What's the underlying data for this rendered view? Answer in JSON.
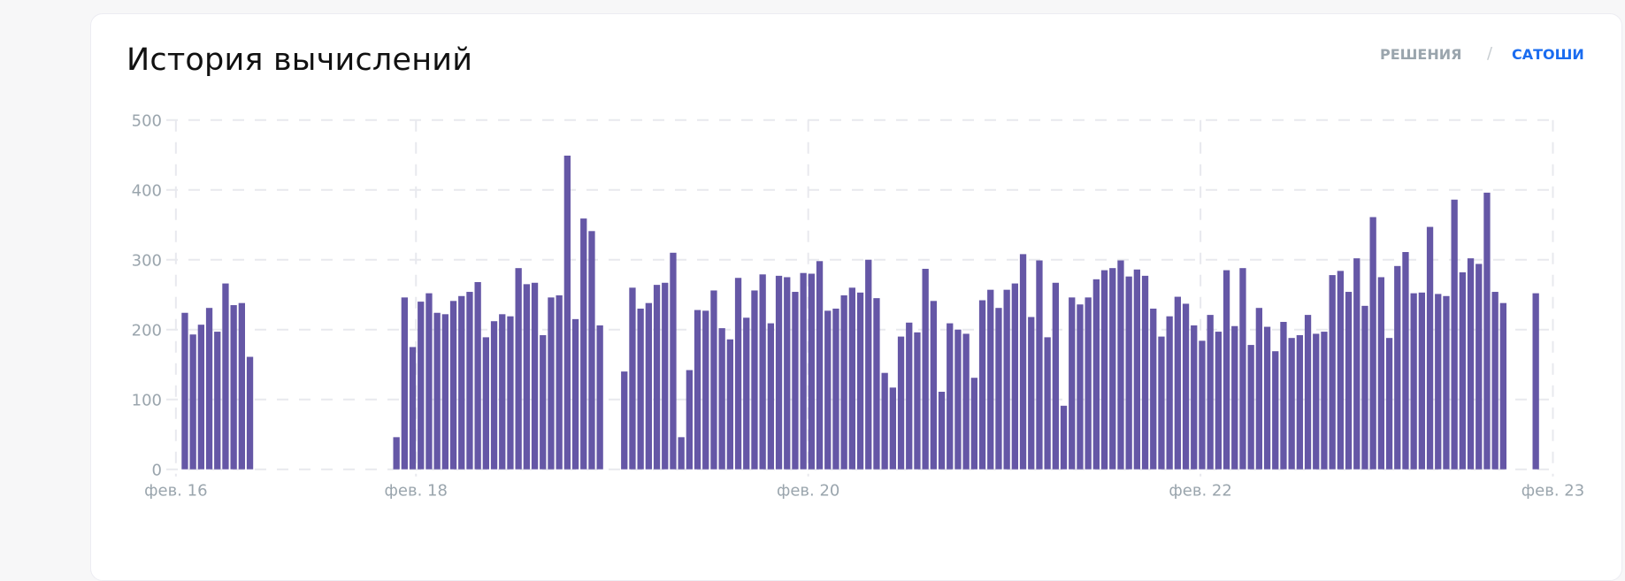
{
  "header": {
    "title": "История вычислений",
    "toggle_solutions": "РЕШЕНИЯ",
    "separator": "/",
    "toggle_satoshi": "САТОШИ"
  },
  "colors": {
    "bar": "#6557a6",
    "active": "#1a6cf0",
    "muted": "#9aa5ad"
  },
  "chart_data": {
    "type": "bar",
    "title": "История вычислений",
    "xlabel": "",
    "ylabel": "",
    "ylim": [
      0,
      500
    ],
    "yticks": [
      "0",
      "100",
      "200",
      "300",
      "400",
      "500"
    ],
    "ytick_values": [
      0,
      100,
      200,
      300,
      400,
      500
    ],
    "x_unit": "hour index",
    "xticks": [
      {
        "label": "фев. 16",
        "at": -1.1
      },
      {
        "label": "фев. 18",
        "at": 28.4
      },
      {
        "label": "фев. 20",
        "at": 76.6
      },
      {
        "label": "фев. 22",
        "at": 124.8
      },
      {
        "label": "фев. 23",
        "at": 168.1
      }
    ],
    "grid": true,
    "values": [
      224,
      193,
      207,
      231,
      197,
      266,
      235,
      238,
      161,
      null,
      null,
      null,
      null,
      null,
      null,
      null,
      null,
      null,
      null,
      null,
      null,
      null,
      null,
      null,
      null,
      null,
      46,
      246,
      175,
      240,
      252,
      224,
      222,
      241,
      248,
      254,
      268,
      189,
      212,
      222,
      219,
      288,
      265,
      267,
      192,
      246,
      249,
      449,
      215,
      359,
      341,
      206,
      null,
      null,
      140,
      260,
      230,
      238,
      264,
      267,
      310,
      46,
      142,
      228,
      227,
      256,
      202,
      186,
      274,
      217,
      256,
      279,
      209,
      277,
      275,
      254,
      281,
      280,
      298,
      227,
      230,
      249,
      260,
      253,
      300,
      245,
      138,
      117,
      190,
      210,
      196,
      287,
      241,
      111,
      209,
      200,
      194,
      131,
      242,
      257,
      231,
      257,
      266,
      308,
      218,
      299,
      189,
      267,
      91,
      246,
      236,
      246,
      272,
      285,
      288,
      299,
      276,
      286,
      277,
      230,
      190,
      219,
      247,
      237,
      206,
      184,
      221,
      197,
      285,
      205,
      288,
      178,
      231,
      204,
      169,
      211,
      188,
      192,
      221,
      194,
      197,
      278,
      284,
      254,
      302,
      234,
      361,
      275,
      188,
      291,
      311,
      252,
      253,
      347,
      251,
      248,
      386,
      282,
      302,
      294,
      396,
      254,
      238,
      null,
      null,
      null,
      252
    ]
  }
}
